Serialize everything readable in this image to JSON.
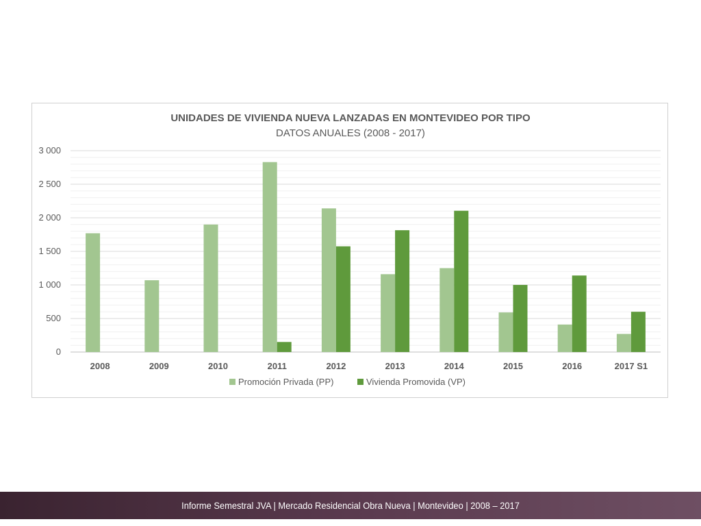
{
  "chart_data": {
    "type": "bar",
    "title": "UNIDADES DE VIVIENDA NUEVA LANZADAS EN MONTEVIDEO POR TIPO",
    "subtitle": "DATOS ANUALES (2008 - 2017)",
    "categories": [
      "2008",
      "2009",
      "2010",
      "2011",
      "2012",
      "2013",
      "2014",
      "2015",
      "2016",
      "2017 S1"
    ],
    "series": [
      {
        "name": "Promoción Privada (PP)",
        "color": "#a2c690",
        "values": [
          1770,
          1070,
          1900,
          2830,
          2140,
          1160,
          1250,
          590,
          410,
          270
        ]
      },
      {
        "name": "Vivienda Promovida (VP)",
        "color": "#5f9a3c",
        "values": [
          0,
          0,
          0,
          150,
          1575,
          1815,
          2105,
          1000,
          1140,
          600
        ]
      }
    ],
    "ylim": [
      0,
      3000
    ],
    "yticks": [
      0,
      500,
      1000,
      1500,
      2000,
      2500,
      3000
    ],
    "ytick_labels": [
      "0",
      "500",
      "1 000",
      "1 500",
      "2 000",
      "2 500",
      "3 000"
    ],
    "xlabel": "",
    "ylabel": "",
    "grid": true,
    "legend_position": "bottom"
  },
  "footer": {
    "text": "Informe Semestral JVA | Mercado Residencial Obra Nueva | Montevideo | 2008 – 2017"
  }
}
